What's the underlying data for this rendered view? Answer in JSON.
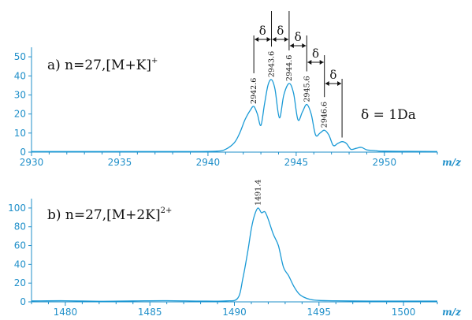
{
  "chart_data": [
    {
      "type": "line",
      "panel_label": "a) n=27,[M+K]",
      "panel_superscript": "+",
      "xlabel": "m/z",
      "xlim": [
        2930,
        2953
      ],
      "ylim": [
        0,
        55
      ],
      "x_ticks": [
        2930,
        2935,
        2940,
        2945,
        2950
      ],
      "y_ticks": [
        0,
        10,
        20,
        30,
        40,
        50
      ],
      "line_color": "#1a9ad6",
      "axis_color": "#1f8fc9",
      "series": [
        {
          "x": [
            2930,
            2935,
            2939,
            2940.5,
            2941,
            2941.5,
            2941.8,
            2942.1,
            2942.4,
            2942.6,
            2942.8,
            2943.0,
            2943.2,
            2943.4,
            2943.6,
            2943.8,
            2944.05,
            2944.3,
            2944.6,
            2944.85,
            2945.1,
            2945.35,
            2945.6,
            2945.85,
            2946.1,
            2946.35,
            2946.6,
            2946.85,
            2947.1,
            2947.35,
            2947.6,
            2947.85,
            2948.1,
            2948.4,
            2948.7,
            2949.0,
            2949.5,
            2950,
            2953
          ],
          "y": [
            0.3,
            0.3,
            0.3,
            0.5,
            1.5,
            5,
            10,
            17,
            22,
            24,
            20,
            14,
            25,
            35,
            38,
            33,
            18,
            30,
            36,
            31,
            17,
            21,
            25,
            20,
            9,
            10,
            11.5,
            9,
            3.5,
            4.5,
            5.5,
            4.5,
            1.5,
            2,
            2.5,
            1.2,
            0.8,
            0.5,
            0.3
          ]
        }
      ],
      "peak_labels": [
        {
          "x": 2942.6,
          "y": 24,
          "text": "2942.6"
        },
        {
          "x": 2943.6,
          "y": 38,
          "text": "2943.6"
        },
        {
          "x": 2944.6,
          "y": 36,
          "text": "2944.6"
        },
        {
          "x": 2945.6,
          "y": 25,
          "text": "2945.6"
        },
        {
          "x": 2946.6,
          "y": 11.5,
          "text": "2946.6"
        }
      ],
      "delta_symbol": "δ",
      "delta_annotation": "δ = 1Da"
    },
    {
      "type": "line",
      "panel_label": "b) n=27,[M+2K]",
      "panel_superscript": "2+",
      "xlabel": "m/z",
      "xlim": [
        1478,
        1502
      ],
      "ylim": [
        0,
        110
      ],
      "x_ticks": [
        1480,
        1485,
        1490,
        1495,
        1500
      ],
      "y_ticks": [
        0,
        20,
        40,
        60,
        80,
        100
      ],
      "line_color": "#1a9ad6",
      "axis_color": "#1f8fc9",
      "series": [
        {
          "x": [
            1478,
            1480,
            1482,
            1484,
            1486,
            1488,
            1489.5,
            1490.2,
            1490.5,
            1490.8,
            1491.0,
            1491.2,
            1491.4,
            1491.6,
            1491.8,
            1492.0,
            1492.3,
            1492.6,
            1492.9,
            1493.2,
            1493.5,
            1493.8,
            1494.1,
            1494.5,
            1495.0,
            1496,
            1498,
            1500,
            1502
          ],
          "y": [
            1,
            1.2,
            0.6,
            1,
            1.3,
            0.8,
            1,
            4,
            25,
            55,
            78,
            93,
            100,
            95,
            96,
            88,
            72,
            60,
            37,
            28,
            17,
            9,
            5,
            2.5,
            1.5,
            1.2,
            0.8,
            0.8,
            0.8
          ]
        }
      ],
      "peak_labels": [
        {
          "x": 1491.4,
          "y": 100,
          "text": "1491.4"
        }
      ]
    }
  ]
}
